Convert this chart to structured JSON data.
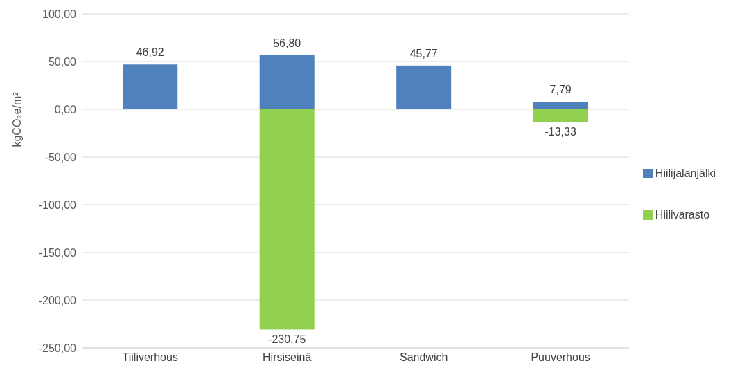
{
  "chart_data": {
    "type": "bar",
    "stacked": true,
    "ylabel": "kgCO₂e/m²",
    "categories": [
      "Tiiliverhous",
      "Hirsiseinä",
      "Sandwich",
      "Puuverhous"
    ],
    "series": [
      {
        "name": "Hiilijalanjälki",
        "color": "#4f81bd",
        "values": [
          46.92,
          56.8,
          45.77,
          7.79
        ],
        "value_labels": [
          "46,92",
          "56,80",
          "45,77",
          "7,79"
        ]
      },
      {
        "name": "Hiilivarasto",
        "color": "#92d050",
        "values": [
          null,
          -230.75,
          null,
          -13.33
        ],
        "value_labels": [
          null,
          "-230,75",
          null,
          "-13,33"
        ]
      }
    ],
    "ylim": [
      -250,
      100
    ],
    "yticks": [
      {
        "value": -250,
        "label": "-250,00"
      },
      {
        "value": -200,
        "label": "-200,00"
      },
      {
        "value": -150,
        "label": "-150,00"
      },
      {
        "value": -100,
        "label": "-100,00"
      },
      {
        "value": -50,
        "label": "-50,00"
      },
      {
        "value": 0,
        "label": "0,00"
      },
      {
        "value": 50,
        "label": "50,00"
      },
      {
        "value": 100,
        "label": "100,00"
      }
    ],
    "grid": "y",
    "legend": "right"
  }
}
